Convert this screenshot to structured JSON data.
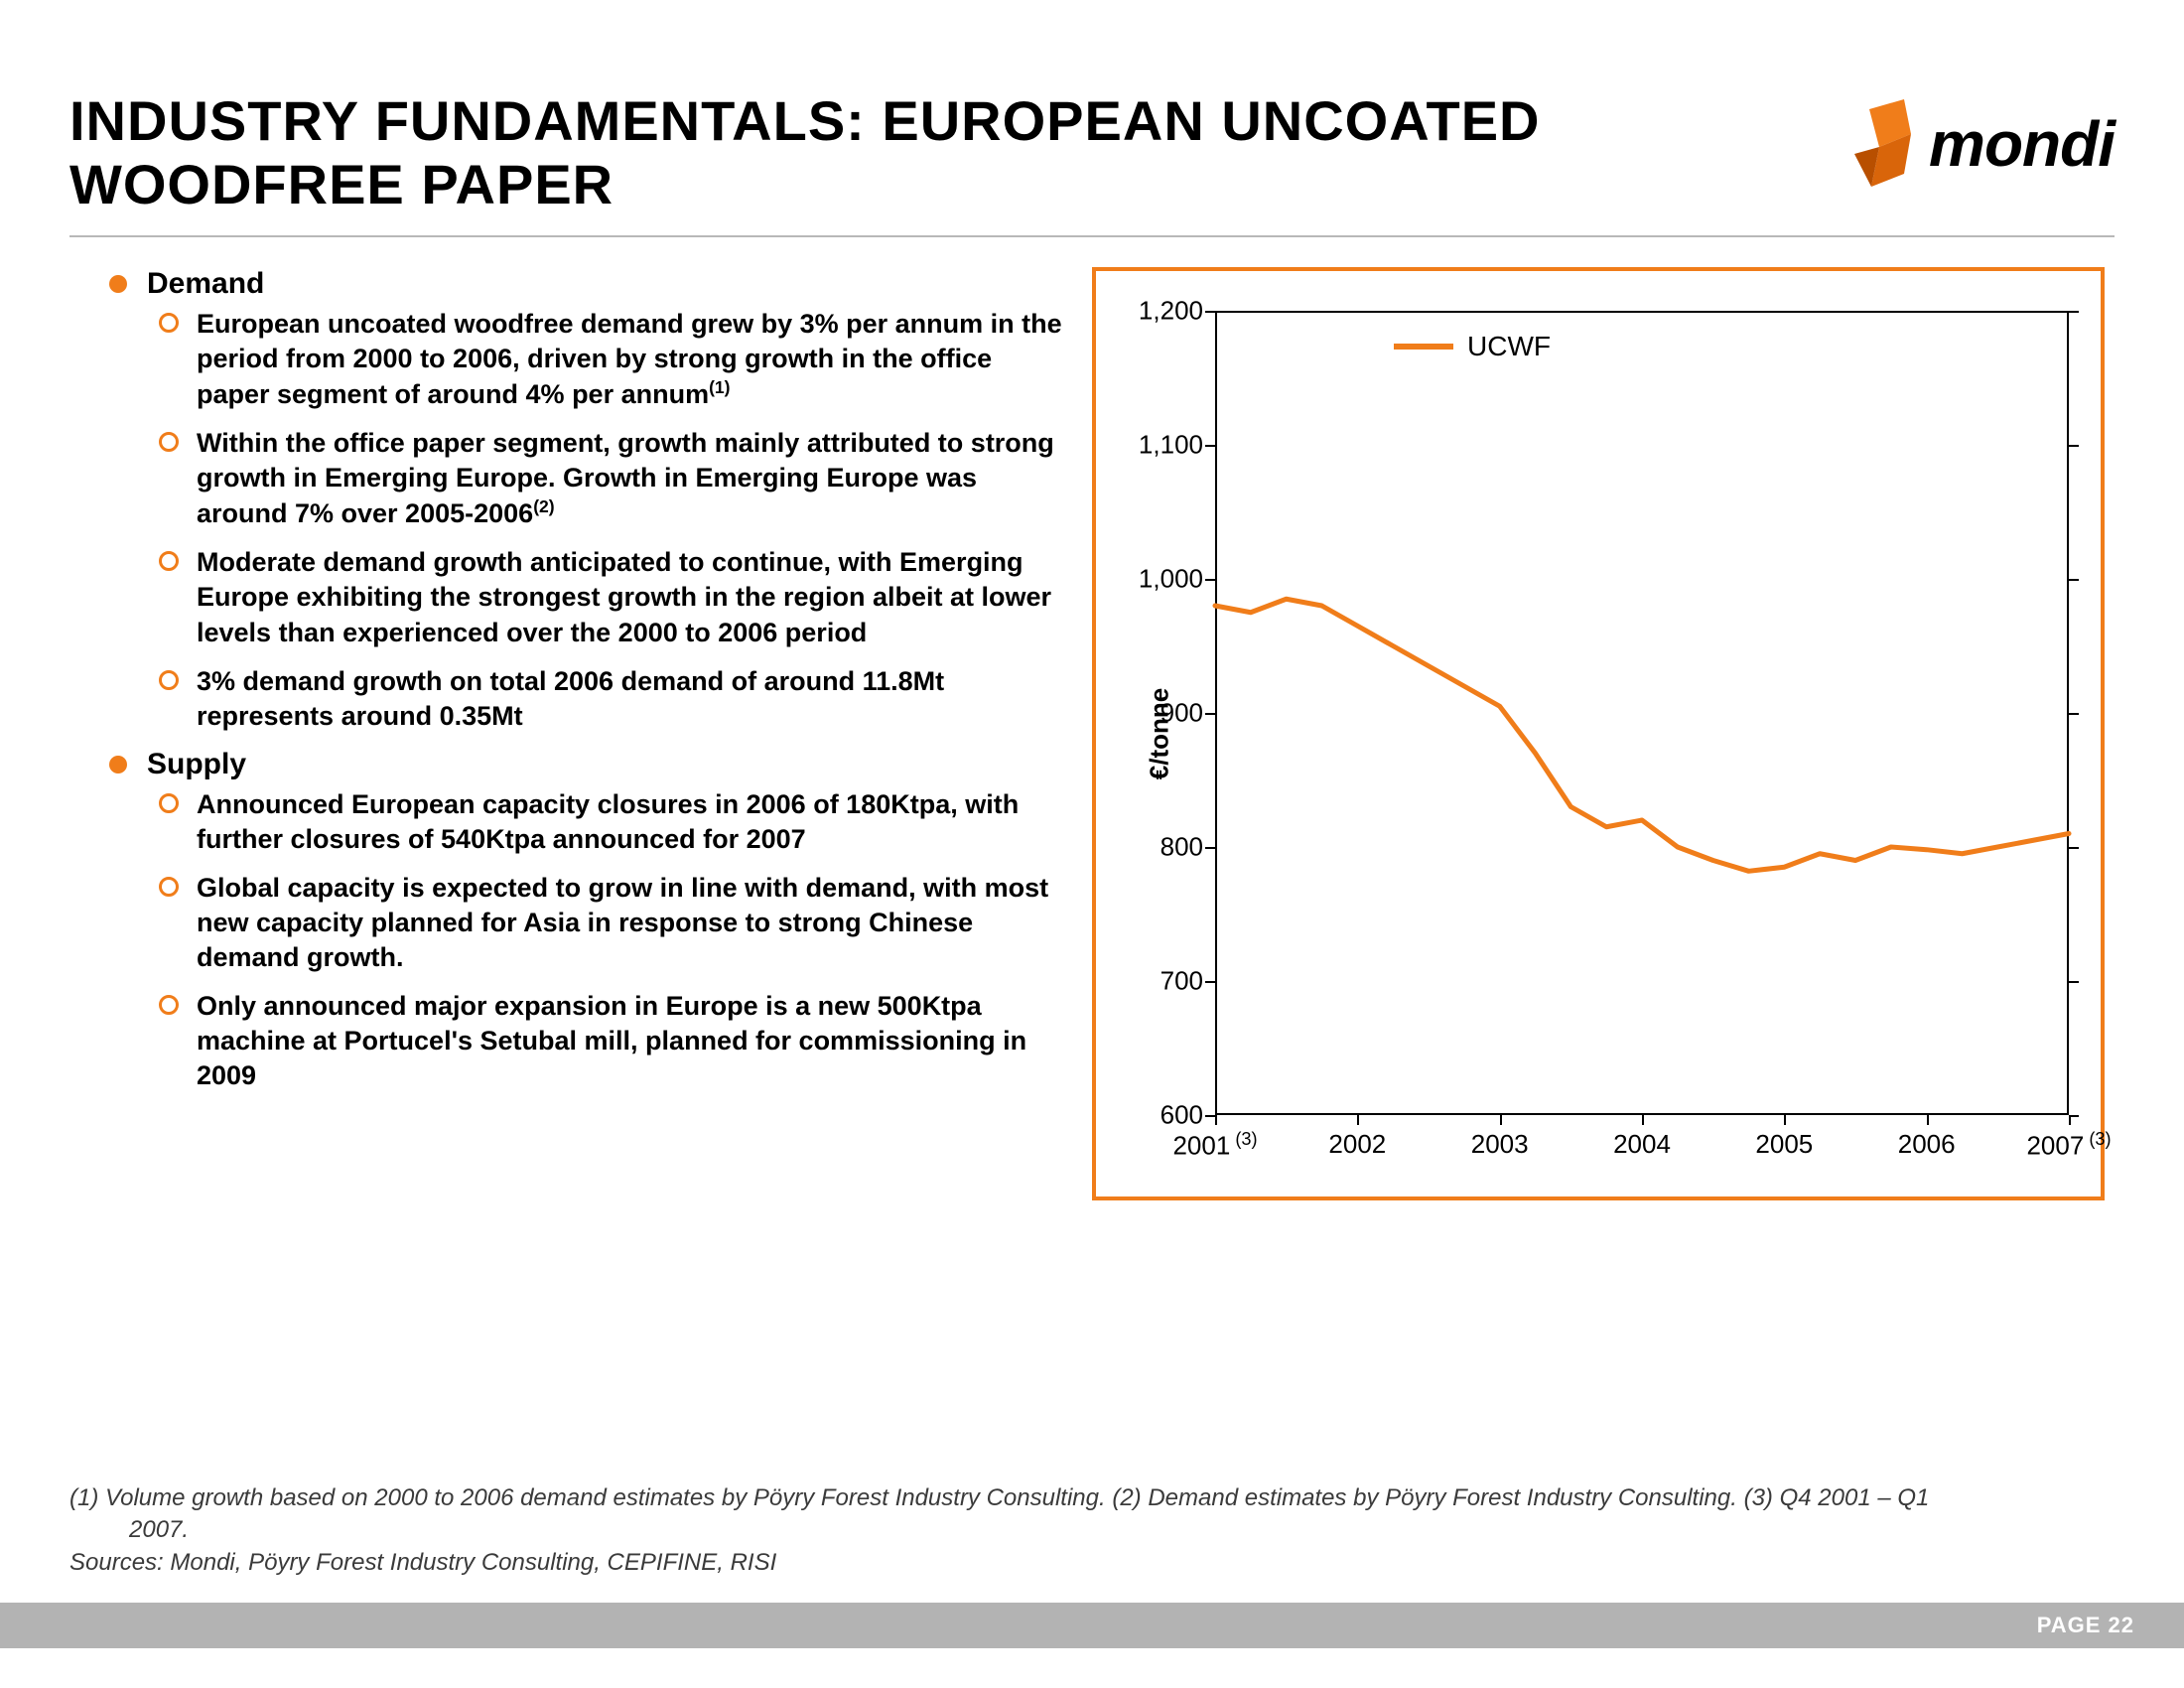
{
  "title": "INDUSTRY FUNDAMENTALS: EUROPEAN UNCOATED WOODFREE PAPER",
  "logo": {
    "text": "mondi",
    "accent_color": "#f07d1a"
  },
  "bullets": [
    {
      "label": "Demand",
      "items": [
        {
          "text": "European uncoated woodfree demand grew by 3% per annum in the period from 2000 to 2006, driven by strong growth in the office paper segment of around 4% per annum",
          "sup": "(1)"
        },
        {
          "text": "Within the office paper segment, growth mainly attributed to strong growth in Emerging Europe. Growth in Emerging Europe was around 7% over 2005-2006",
          "sup": "(2)"
        },
        {
          "text": "Moderate demand growth anticipated to continue, with Emerging Europe exhibiting the strongest growth in the region albeit at lower levels than experienced over the 2000 to 2006 period"
        },
        {
          "text": "3% demand growth on total 2006 demand of around 11.8Mt represents around 0.35Mt"
        }
      ]
    },
    {
      "label": "Supply",
      "items": [
        {
          "text": "Announced European capacity closures in 2006 of 180Ktpa, with further closures of 540Ktpa announced for 2007"
        },
        {
          "text": "Global capacity is expected to grow in line with demand, with most new capacity planned for Asia in response to strong Chinese demand growth."
        },
        {
          "text": "Only announced major expansion in Europe is a new 500Ktpa machine at Portucel's Setubal mill, planned for commissioning in 2009"
        }
      ]
    }
  ],
  "chart": {
    "type": "line",
    "border_color": "#f07d1a",
    "background_color": "#ffffff",
    "y_label": "€/tonne",
    "ylim": [
      600,
      1200
    ],
    "ytick_step": 100,
    "y_ticks": [
      600,
      700,
      800,
      900,
      1000,
      1100,
      1200
    ],
    "x_labels": [
      "2001",
      "2002",
      "2003",
      "2004",
      "2005",
      "2006",
      "2007"
    ],
    "x_sup": {
      "0": "(3)",
      "6": "(3)"
    },
    "legend": {
      "label": "UCWF",
      "color": "#f07d1a"
    },
    "line_color": "#f07d1a",
    "line_width": 5,
    "series": {
      "x": [
        0,
        0.25,
        0.5,
        0.75,
        1.0,
        1.25,
        1.5,
        1.75,
        2.0,
        2.25,
        2.5,
        2.75,
        3.0,
        3.25,
        3.5,
        3.75,
        4.0,
        4.25,
        4.5,
        4.75,
        5.0,
        5.25,
        5.5,
        5.75,
        6.0
      ],
      "y": [
        980,
        975,
        985,
        980,
        965,
        950,
        935,
        920,
        905,
        870,
        830,
        815,
        820,
        800,
        790,
        782,
        785,
        795,
        790,
        800,
        798,
        795,
        800,
        805,
        810
      ]
    }
  },
  "footnotes": {
    "line1": "(1) Volume growth based on 2000 to 2006 demand estimates by Pöyry Forest Industry Consulting. (2) Demand estimates by Pöyry Forest Industry Consulting. (3) Q4 2001 – Q1",
    "line1_cont": "2007.",
    "sources": "Sources: Mondi, Pöyry Forest Industry Consulting, CEPIFINE, RISI"
  },
  "page": "PAGE 22"
}
